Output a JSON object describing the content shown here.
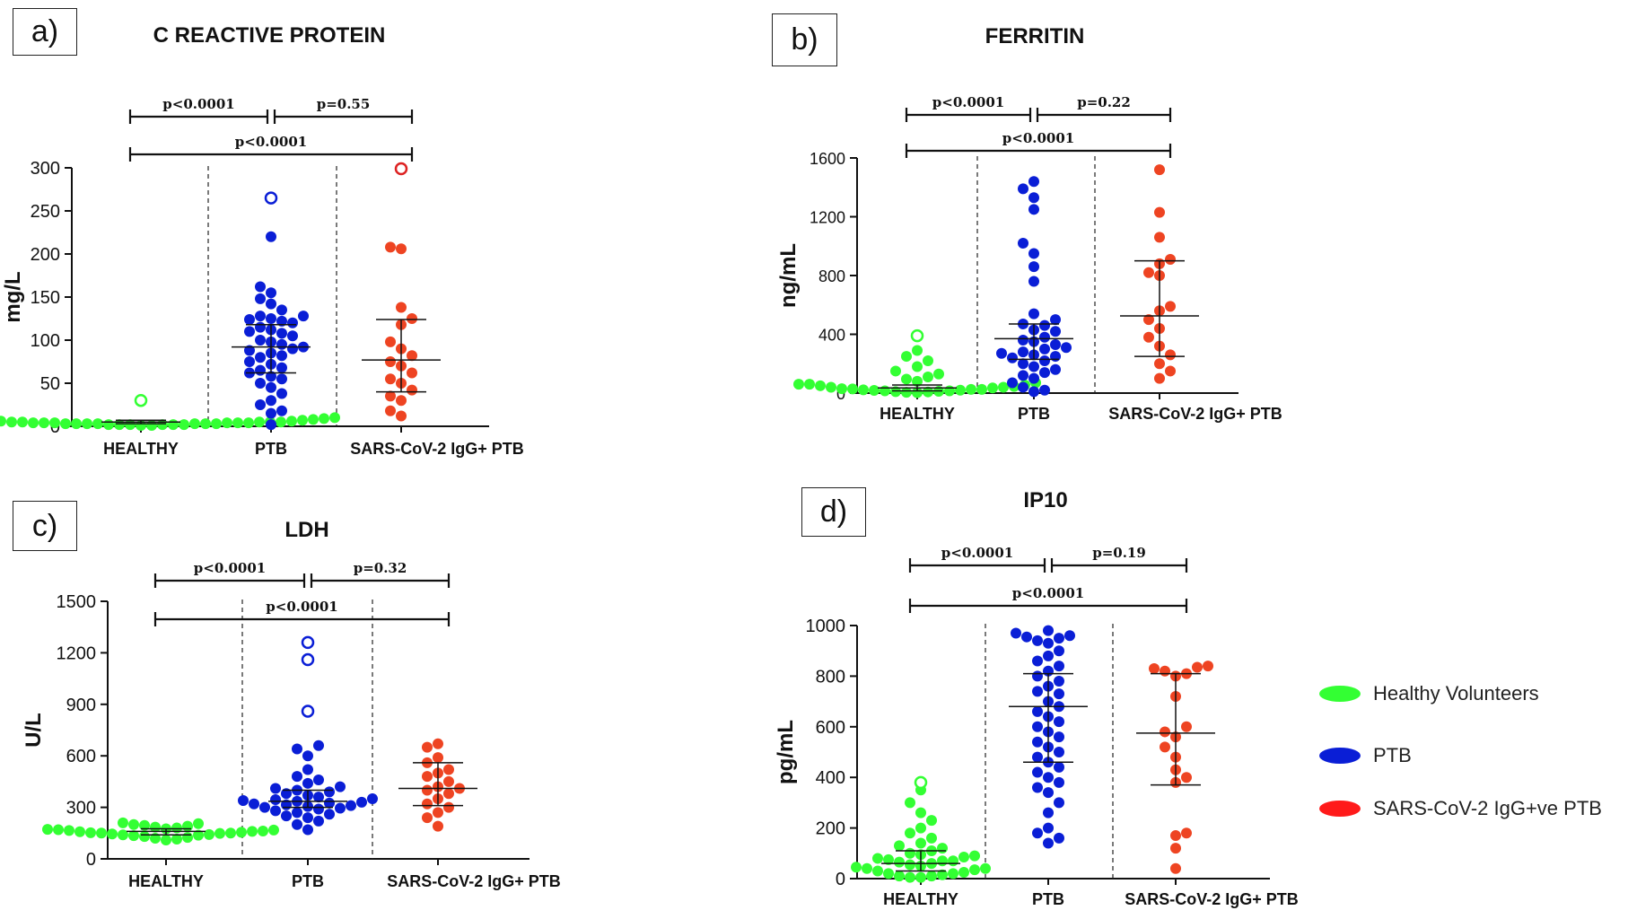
{
  "colors": {
    "healthy": "#33ff33",
    "ptb": "#0a1ed6",
    "covid": "#ee4422",
    "covid_legend": "#ff1a1a",
    "axis": "#111111"
  },
  "legend": {
    "items": [
      {
        "label": "Healthy Volunteers",
        "color": "#33ff33"
      },
      {
        "label": "PTB",
        "color": "#0a1ed6"
      },
      {
        "label": "SARS-CoV-2 IgG+ve PTB",
        "color": "#ff1a1a"
      }
    ]
  },
  "chart_data": [
    {
      "panel": "a)",
      "type": "scatter",
      "title": "C REACTIVE PROTEIN",
      "ylabel": "mg/L",
      "ylim": [
        0,
        300
      ],
      "yticks": [
        0,
        50,
        100,
        150,
        200,
        250,
        300
      ],
      "categories": [
        "HEALTHY",
        "PTB",
        "SARS-CoV-2 IgG+ PTB"
      ],
      "comparisons": [
        {
          "from": 0,
          "to": 1,
          "label": "p<0.0001",
          "level": 1
        },
        {
          "from": 1,
          "to": 2,
          "label": "p=0.55",
          "level": 1
        },
        {
          "from": 0,
          "to": 2,
          "label": "p<0.0001",
          "level": 0
        }
      ],
      "series": [
        {
          "name": "HEALTHY",
          "median": 5,
          "q1": 3,
          "q3": 7,
          "values": [
            1,
            2,
            3,
            3,
            4,
            5,
            6,
            7,
            8,
            2,
            5,
            3,
            4,
            6,
            9,
            1,
            2,
            4,
            3,
            5,
            6,
            2,
            8,
            4,
            3,
            10,
            2,
            5,
            7,
            3,
            4,
            6,
            2,
            3,
            5,
            4
          ],
          "outliers": [
            30
          ]
        },
        {
          "name": "PTB",
          "median": 92,
          "q1": 62,
          "q3": 118,
          "values": [
            220,
            162,
            155,
            148,
            142,
            135,
            128,
            128,
            125,
            124,
            122,
            120,
            115,
            112,
            110,
            108,
            105,
            100,
            98,
            95,
            92,
            90,
            88,
            85,
            82,
            80,
            75,
            72,
            68,
            65,
            62,
            58,
            55,
            50,
            45,
            38,
            30,
            25,
            18,
            15,
            2
          ],
          "outliers": [
            265
          ]
        },
        {
          "name": "SARS-CoV-2 IgG+ PTB",
          "median": 77,
          "q1": 40,
          "q3": 124,
          "values": [
            208,
            206,
            138,
            125,
            118,
            98,
            90,
            82,
            75,
            70,
            62,
            55,
            50,
            42,
            35,
            30,
            18,
            12
          ],
          "outliers": [
            299
          ]
        }
      ]
    },
    {
      "panel": "b)",
      "type": "scatter",
      "title": "FERRITIN",
      "ylabel": "ng/mL",
      "ylim": [
        0,
        1600
      ],
      "yticks": [
        0,
        400,
        800,
        1200,
        1600
      ],
      "categories": [
        "HEALTHY",
        "PTB",
        "SARS-CoV-2 IgG+ PTB"
      ],
      "comparisons": [
        {
          "from": 0,
          "to": 1,
          "label": "p<0.0001",
          "level": 1
        },
        {
          "from": 1,
          "to": 2,
          "label": "p=0.22",
          "level": 1
        },
        {
          "from": 0,
          "to": 2,
          "label": "p<0.0001",
          "level": 0
        }
      ],
      "series": [
        {
          "name": "HEALTHY",
          "median": 35,
          "q1": 15,
          "q3": 55,
          "values": [
            290,
            250,
            220,
            180,
            150,
            130,
            110,
            95,
            80,
            70,
            60,
            55,
            50,
            45,
            40,
            35,
            30,
            28,
            25,
            22,
            20,
            18,
            15,
            12,
            10,
            8,
            5,
            3,
            40,
            60,
            25,
            15
          ],
          "outliers": [
            390
          ]
        },
        {
          "name": "PTB",
          "median": 370,
          "q1": 230,
          "q3": 470,
          "values": [
            1440,
            1390,
            1330,
            1250,
            1020,
            950,
            860,
            760,
            540,
            500,
            470,
            460,
            430,
            420,
            380,
            360,
            350,
            330,
            310,
            300,
            280,
            270,
            260,
            250,
            240,
            220,
            200,
            180,
            160,
            140,
            120,
            100,
            70,
            40,
            20,
            10
          ],
          "outliers": []
        },
        {
          "name": "SARS-CoV-2 IgG+ PTB",
          "median": 525,
          "q1": 250,
          "q3": 900,
          "values": [
            1520,
            1230,
            1060,
            910,
            880,
            820,
            800,
            590,
            560,
            500,
            440,
            380,
            320,
            260,
            200,
            150,
            100
          ],
          "outliers": []
        }
      ]
    },
    {
      "panel": "c)",
      "type": "scatter",
      "title": "LDH",
      "ylabel": "U/L",
      "ylim": [
        0,
        1500
      ],
      "yticks": [
        0,
        300,
        600,
        900,
        1200,
        1500
      ],
      "categories": [
        "HEALTHY",
        "PTB",
        "SARS-CoV-2 IgG+ PTB"
      ],
      "comparisons": [
        {
          "from": 0,
          "to": 1,
          "label": "p<0.0001",
          "level": 1
        },
        {
          "from": 1,
          "to": 2,
          "label": "p=0.32",
          "level": 1
        },
        {
          "from": 0,
          "to": 2,
          "label": "p<0.0001",
          "level": 0
        }
      ],
      "series": [
        {
          "name": "HEALTHY",
          "median": 160,
          "q1": 140,
          "q3": 175,
          "values": [
            210,
            200,
            195,
            190,
            185,
            180,
            175,
            170,
            168,
            165,
            162,
            160,
            158,
            155,
            152,
            150,
            148,
            145,
            142,
            140,
            138,
            135,
            130,
            125,
            120,
            115,
            110,
            205,
            172,
            150
          ],
          "outliers": []
        },
        {
          "name": "PTB",
          "median": 335,
          "q1": 300,
          "q3": 400,
          "values": [
            660,
            640,
            600,
            520,
            480,
            460,
            440,
            420,
            410,
            400,
            390,
            380,
            370,
            360,
            350,
            345,
            340,
            335,
            330,
            325,
            320,
            315,
            310,
            305,
            300,
            295,
            290,
            280,
            270,
            260,
            250,
            240,
            220,
            200,
            170
          ],
          "outliers": [
            1260,
            1160,
            860
          ]
        },
        {
          "name": "SARS-CoV-2 IgG+ PTB",
          "median": 410,
          "q1": 310,
          "q3": 560,
          "values": [
            670,
            650,
            590,
            560,
            520,
            500,
            480,
            450,
            420,
            410,
            400,
            380,
            350,
            320,
            300,
            270,
            240,
            190
          ],
          "outliers": []
        }
      ]
    },
    {
      "panel": "d)",
      "type": "scatter",
      "title": "IP10",
      "ylabel": "pg/mL",
      "ylim": [
        0,
        1000
      ],
      "yticks": [
        0,
        200,
        400,
        600,
        800,
        1000
      ],
      "categories": [
        "HEALTHY",
        "PTB",
        "SARS-CoV-2 IgG+ PTB"
      ],
      "comparisons": [
        {
          "from": 0,
          "to": 1,
          "label": "p<0.0001",
          "level": 1
        },
        {
          "from": 1,
          "to": 2,
          "label": "p=0.19",
          "level": 1
        },
        {
          "from": 0,
          "to": 2,
          "label": "p<0.0001",
          "level": 0
        }
      ],
      "series": [
        {
          "name": "HEALTHY",
          "median": 60,
          "q1": 30,
          "q3": 110,
          "values": [
            350,
            300,
            260,
            230,
            200,
            180,
            160,
            140,
            130,
            120,
            110,
            100,
            95,
            90,
            85,
            80,
            75,
            70,
            65,
            60,
            55,
            50,
            45,
            40,
            35,
            30,
            25,
            20,
            15,
            10,
            5,
            70,
            40,
            20,
            10,
            5
          ],
          "outliers": [
            380
          ]
        },
        {
          "name": "PTB",
          "median": 680,
          "q1": 460,
          "q3": 810,
          "values": [
            980,
            970,
            960,
            955,
            950,
            940,
            930,
            900,
            880,
            860,
            840,
            820,
            800,
            780,
            760,
            740,
            730,
            700,
            680,
            660,
            640,
            620,
            600,
            580,
            560,
            540,
            520,
            500,
            480,
            460,
            440,
            420,
            400,
            380,
            360,
            340,
            300,
            260,
            200,
            180,
            160,
            140
          ],
          "outliers": []
        },
        {
          "name": "SARS-CoV-2 IgG+ PTB",
          "median": 575,
          "q1": 370,
          "q3": 810,
          "values": [
            840,
            835,
            830,
            820,
            810,
            800,
            720,
            600,
            580,
            560,
            520,
            480,
            430,
            400,
            380,
            180,
            170,
            120,
            40
          ],
          "outliers": []
        }
      ]
    }
  ]
}
